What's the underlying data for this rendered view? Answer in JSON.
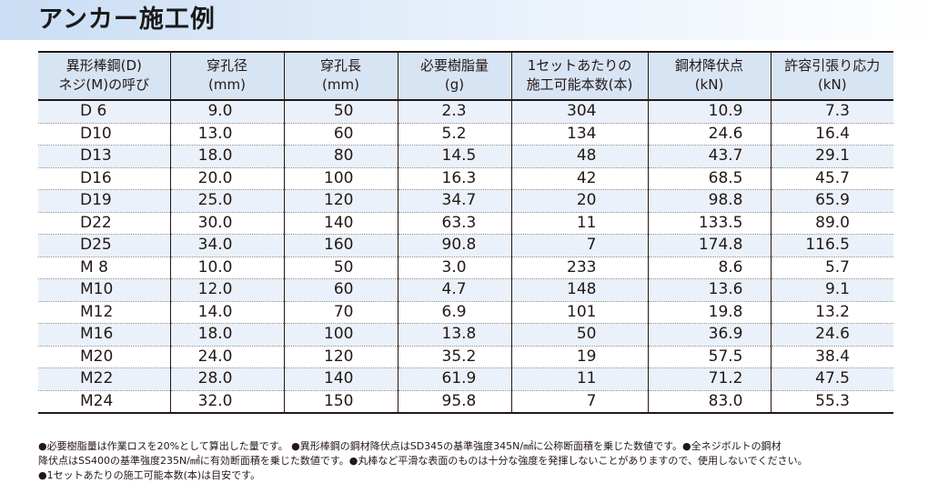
{
  "title": "アンカー施工例",
  "table": {
    "headers": [
      [
        "異形棒鋼(D)",
        "ネジ(M)の呼び"
      ],
      [
        "穿孔径",
        "(mm)"
      ],
      [
        "穿孔長",
        "(mm)"
      ],
      [
        "必要樹脂量",
        "(g)"
      ],
      [
        "1セットあたりの",
        "施工可能本数(本)"
      ],
      [
        "鋼材降伏点",
        "(kN)"
      ],
      [
        "許容引張り応力",
        "(kN)"
      ]
    ],
    "rows": [
      [
        "D 6",
        "9.0",
        "50",
        "2.3",
        "304",
        "10.9",
        "7.3"
      ],
      [
        "D10",
        "13.0",
        "60",
        "5.2",
        "134",
        "24.6",
        "16.4"
      ],
      [
        "D13",
        "18.0",
        "80",
        "14.5",
        "48",
        "43.7",
        "29.1"
      ],
      [
        "D16",
        "20.0",
        "100",
        "16.3",
        "42",
        "68.5",
        "45.7"
      ],
      [
        "D19",
        "25.0",
        "120",
        "34.7",
        "20",
        "98.8",
        "65.9"
      ],
      [
        "D22",
        "30.0",
        "140",
        "63.3",
        "11",
        "133.5",
        "89.0"
      ],
      [
        "D25",
        "34.0",
        "160",
        "90.8",
        "7",
        "174.8",
        "116.5"
      ],
      [
        "M 8",
        "10.0",
        "50",
        "3.0",
        "233",
        "8.6",
        "5.7"
      ],
      [
        "M10",
        "12.0",
        "60",
        "4.7",
        "148",
        "13.6",
        "9.1"
      ],
      [
        "M12",
        "14.0",
        "70",
        "6.9",
        "101",
        "19.8",
        "13.2"
      ],
      [
        "M16",
        "18.0",
        "100",
        "13.8",
        "50",
        "36.9",
        "24.6"
      ],
      [
        "M20",
        "24.0",
        "120",
        "35.2",
        "19",
        "57.5",
        "38.4"
      ],
      [
        "M22",
        "28.0",
        "140",
        "61.9",
        "11",
        "71.2",
        "47.5"
      ],
      [
        "M24",
        "32.0",
        "150",
        "95.8",
        "7",
        "83.0",
        "55.3"
      ]
    ]
  },
  "notes": [
    "●必要樹脂量は作業ロスを20%として算出した量です。 ●異形棒鋼の鋼材降伏点はSD345の基準強度345N/㎟に公称断面積を乗じた数値です。●全ネジボルトの鋼材",
    "降伏点はSS400の基準強度235N/㎟に有効断面積を乗じた数値です。●丸棒など平滑な表面のものは十分な強度を発揮しないことがありますので、使用しないでください。",
    "●1セットあたりの施工可能本数(本)は目安です。"
  ]
}
